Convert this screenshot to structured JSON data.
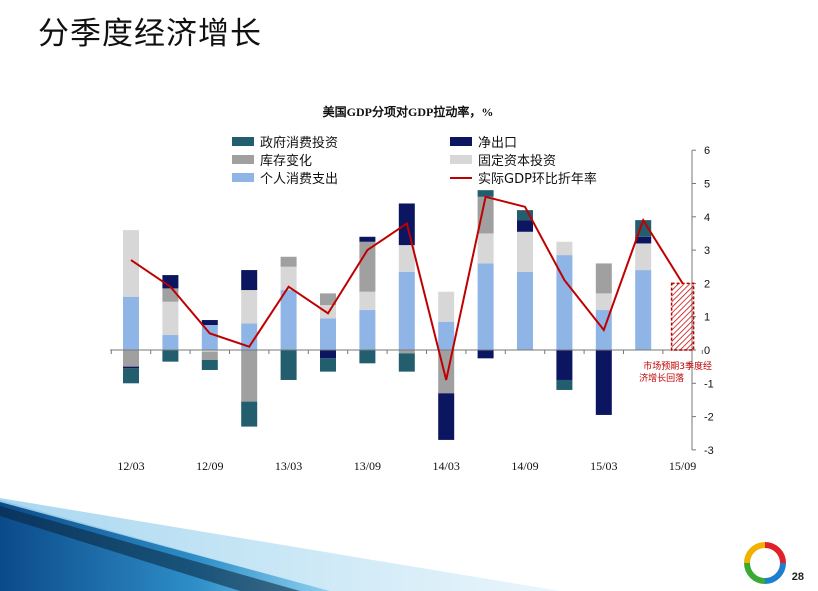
{
  "slide": {
    "title": "分季度经济增长",
    "page_number": "28"
  },
  "colors": {
    "gov": "#225e6e",
    "net_exports": "#0c1560",
    "inventory": "#a0a0a0",
    "fixed_investment": "#d7d7d7",
    "consumption": "#8fb5e6",
    "gdp_line": "#c00000",
    "forecast": "#c00000"
  },
  "chart_data": {
    "type": "bar",
    "title": "美国GDP分项对GDP拉动率，%",
    "x_tick_labels": [
      "12/03",
      "12/09",
      "13/03",
      "13/09",
      "14/03",
      "14/09",
      "15/03",
      "15/09"
    ],
    "quarters": [
      "12/03",
      "12/06",
      "12/09",
      "12/12",
      "13/03",
      "13/06",
      "13/09",
      "13/12",
      "14/03",
      "14/06",
      "14/09",
      "14/12",
      "15/03",
      "15/06",
      "15/09"
    ],
    "y_ticks": [
      "6",
      "5",
      "4",
      "3",
      "2",
      "1",
      "0",
      "-1",
      "-2",
      "-3"
    ],
    "ylim": [
      -3,
      6
    ],
    "legend": [
      {
        "key": "gov",
        "label": "政府消费投资",
        "kind": "bar"
      },
      {
        "key": "net_exports",
        "label": "净出口",
        "kind": "bar"
      },
      {
        "key": "inventory",
        "label": "库存变化",
        "kind": "bar"
      },
      {
        "key": "fixed_investment",
        "label": "固定资本投资",
        "kind": "bar"
      },
      {
        "key": "consumption",
        "label": "个人消费支出",
        "kind": "bar"
      },
      {
        "key": "gdp_line",
        "label": "实际GDP环比折年率",
        "kind": "line"
      }
    ],
    "series": [
      {
        "key": "consumption",
        "values": [
          1.6,
          0.45,
          0.75,
          0.8,
          1.8,
          0.95,
          1.2,
          2.35,
          0.85,
          2.6,
          2.35,
          2.85,
          1.2,
          2.4,
          null
        ]
      },
      {
        "key": "fixed_investment",
        "values": [
          2.0,
          1.0,
          -0.05,
          1.0,
          0.7,
          0.4,
          0.55,
          0.8,
          0.9,
          0.9,
          1.2,
          0.4,
          0.5,
          0.8,
          null
        ]
      },
      {
        "key": "inventory",
        "values": [
          -0.5,
          0.4,
          -0.25,
          -1.55,
          0.3,
          0.35,
          1.5,
          -0.1,
          -1.3,
          1.1,
          0.0,
          0.0,
          0.9,
          0.0,
          null
        ]
      },
      {
        "key": "net_exports",
        "values": [
          -0.05,
          0.4,
          0.15,
          0.6,
          0.0,
          -0.25,
          0.15,
          1.25,
          -1.4,
          -0.25,
          0.35,
          -0.9,
          -1.95,
          0.2,
          null
        ]
      },
      {
        "key": "gov",
        "values": [
          -0.45,
          -0.35,
          -0.3,
          -0.75,
          -0.9,
          -0.4,
          -0.4,
          -0.55,
          0.0,
          0.2,
          0.3,
          -0.3,
          0.0,
          0.5,
          null
        ]
      }
    ],
    "gdp_line": [
      2.7,
      1.9,
      0.5,
      0.1,
      1.9,
      1.1,
      3.0,
      3.8,
      -0.9,
      4.6,
      4.3,
      2.1,
      0.6,
      3.9,
      2.0
    ],
    "forecast": {
      "quarter": "15/09",
      "value": 2.0,
      "annotation_line1": "市场预期3季度经",
      "annotation_line2": "济增长回落"
    }
  }
}
